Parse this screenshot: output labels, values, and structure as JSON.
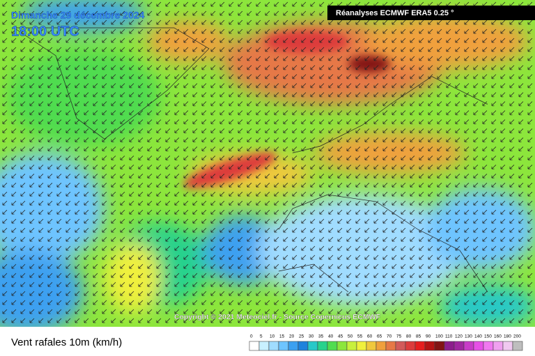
{
  "header": {
    "date": "Dimanche 29 décembre 2024",
    "time": "18:00 UTC",
    "source": "Réanalyses ECMWF ERA5 0.25 °"
  },
  "map": {
    "copyright": "Copyright © 2021 Meteociel.fr - Source Copernicus ECMWF"
  },
  "legend": {
    "title": "Vent rafales 10m (km/h)",
    "ticks": [
      0,
      5,
      10,
      15,
      20,
      25,
      30,
      35,
      40,
      45,
      50,
      55,
      60,
      65,
      70,
      75,
      80,
      85,
      90,
      100,
      110,
      120,
      130,
      140,
      150,
      160,
      180,
      200
    ],
    "colors": [
      "#ffffff",
      "#c8f0ff",
      "#a0dcff",
      "#6ec4ff",
      "#3ca0f0",
      "#1e82dc",
      "#28c8c8",
      "#28d28c",
      "#50dc50",
      "#8ce63c",
      "#c8f03c",
      "#f0f03c",
      "#f0c83c",
      "#f0a03c",
      "#e67846",
      "#d25a5a",
      "#dc3c3c",
      "#e61e1e",
      "#b41414",
      "#821414",
      "#8c1e8c",
      "#a028a0",
      "#c83cc8",
      "#e650e6",
      "#f078f0",
      "#f0a0f0",
      "#f0c8f0",
      "#bebebe"
    ]
  }
}
